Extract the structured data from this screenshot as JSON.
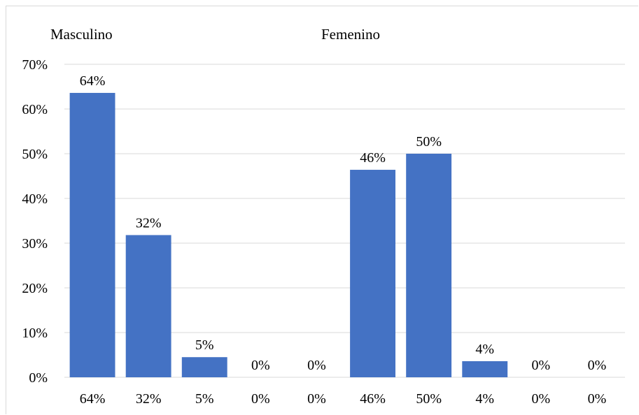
{
  "chart_data": {
    "type": "bar",
    "groups": [
      {
        "label": "Masculino",
        "categories": [
          "64%",
          "32%",
          "5%",
          "0%",
          "0%"
        ],
        "values": [
          63.6,
          31.8,
          4.5,
          0,
          0
        ],
        "data_labels": [
          "64%",
          "32%",
          "5%",
          "0%",
          "0%"
        ]
      },
      {
        "label": "Femenino",
        "categories": [
          "46%",
          "50%",
          "4%",
          "0%",
          "0%"
        ],
        "values": [
          46.4,
          50.0,
          3.6,
          0,
          0
        ],
        "data_labels": [
          "46%",
          "50%",
          "4%",
          "0%",
          "0%"
        ]
      }
    ],
    "yticks": [
      "0%",
      "10%",
      "20%",
      "30%",
      "40%",
      "50%",
      "60%",
      "70%"
    ],
    "ylim": [
      0,
      70
    ],
    "grid": true,
    "bar_color": "#4472c4",
    "grid_color": "#d9d9d9"
  }
}
